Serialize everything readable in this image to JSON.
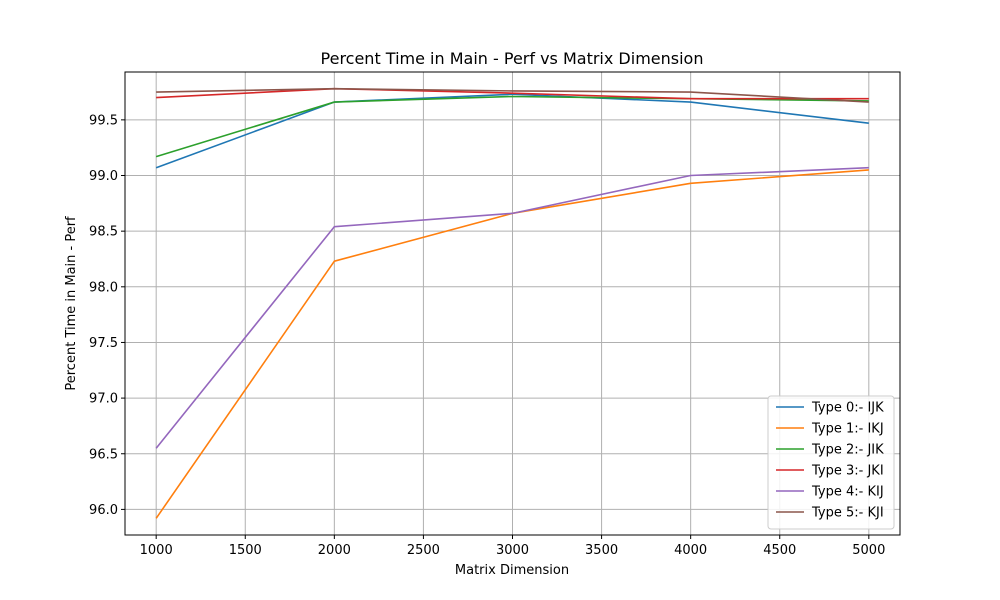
{
  "chart_data": {
    "type": "line",
    "title": "Percent Time in Main - Perf vs Matrix Dimension",
    "xlabel": "Matrix Dimension",
    "ylabel": "Percent Time in Main - Perf",
    "x": [
      1000,
      2000,
      3000,
      4000,
      5000
    ],
    "xlim": [
      825,
      5175
    ],
    "ylim": [
      95.77,
      99.93
    ],
    "xticks": [
      "1000",
      "1500",
      "2000",
      "2500",
      "3000",
      "3500",
      "4000",
      "4500",
      "5000"
    ],
    "xtick_values": [
      1000,
      1500,
      2000,
      2500,
      3000,
      3500,
      4000,
      4500,
      5000
    ],
    "yticks": [
      "96.0",
      "96.5",
      "97.0",
      "97.5",
      "98.0",
      "98.5",
      "99.0",
      "99.5"
    ],
    "ytick_values": [
      96.0,
      96.5,
      97.0,
      97.5,
      98.0,
      98.5,
      99.0,
      99.5
    ],
    "grid": true,
    "legend_position": "lower-right",
    "series": [
      {
        "name": "Type 0:- IJK",
        "color": "#1f77b4",
        "values": [
          99.07,
          99.66,
          99.73,
          99.66,
          99.47
        ]
      },
      {
        "name": "Type 1:- IKJ",
        "color": "#ff7f0e",
        "values": [
          95.92,
          98.23,
          98.66,
          98.93,
          99.05
        ]
      },
      {
        "name": "Type 2:- JIK",
        "color": "#2ca02c",
        "values": [
          99.17,
          99.66,
          99.71,
          99.69,
          99.67
        ]
      },
      {
        "name": "Type 3:- JKI",
        "color": "#d62728",
        "values": [
          99.7,
          99.78,
          99.74,
          99.69,
          99.69
        ]
      },
      {
        "name": "Type 4:- KIJ",
        "color": "#9467bd",
        "values": [
          96.55,
          98.54,
          98.66,
          99.0,
          99.07
        ]
      },
      {
        "name": "Type 5:- KJI",
        "color": "#8c564b",
        "values": [
          99.75,
          99.78,
          99.76,
          99.75,
          99.66
        ]
      }
    ]
  }
}
